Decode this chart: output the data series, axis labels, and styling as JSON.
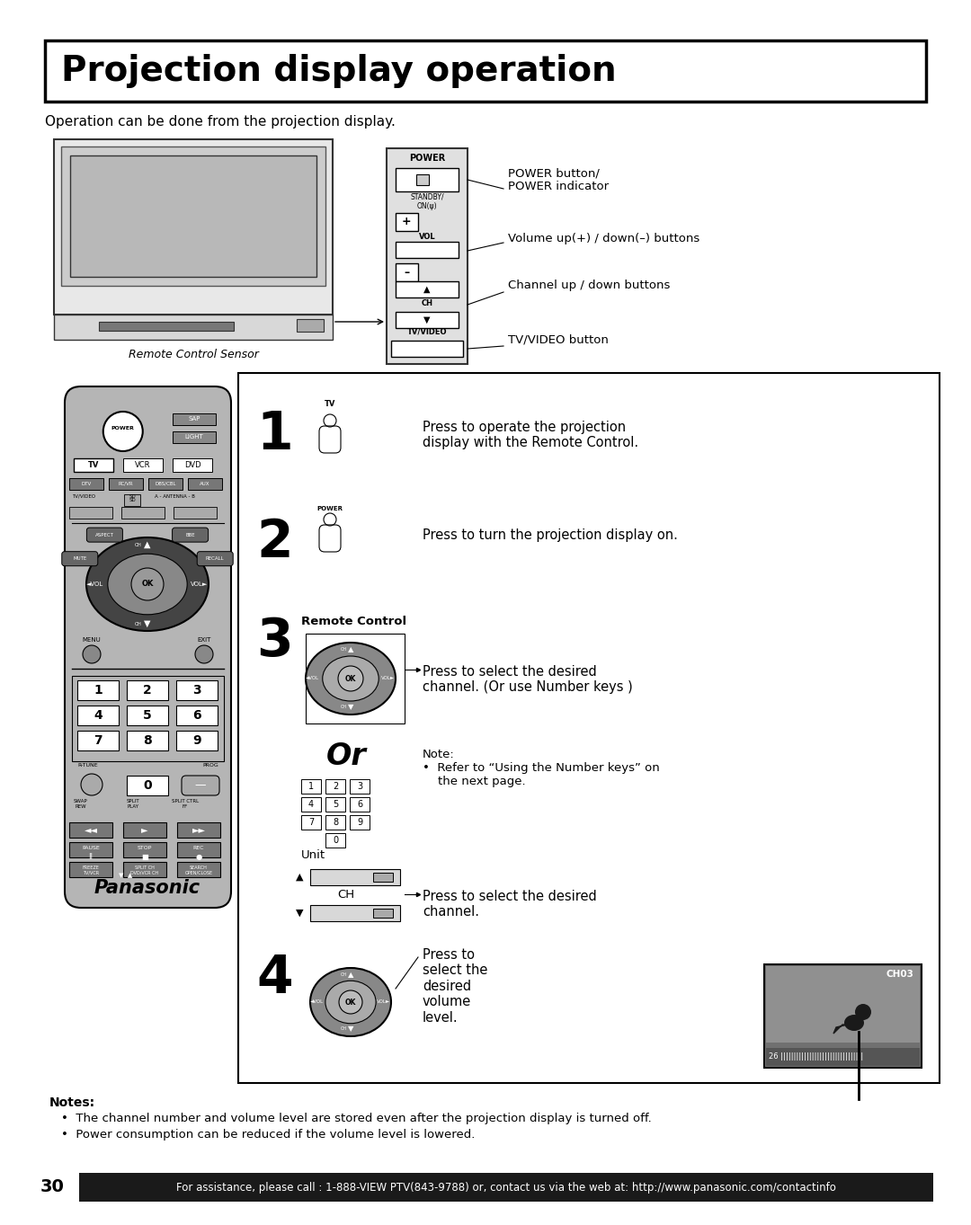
{
  "title": "Projection display operation",
  "subtitle": "Operation can be done from the projection display.",
  "bg_color": "#ffffff",
  "title_fontsize": 28,
  "subtitle_fontsize": 11,
  "page_number": "30",
  "footer_text": "For assistance, please call : 1-888-VIEW PTV(843-9788) or, contact us via the web at: http://www.panasonic.com/contactinfo",
  "footer_bg": "#1a1a1a",
  "footer_fg": "#ffffff",
  "notes_header": "Notes:",
  "notes": [
    "The channel number and volume level are stored even after the projection display is turned off.",
    "Power consumption can be reduced if the volume level is lowered."
  ],
  "right_panel_labels": [
    "POWER button/\nPOWER indicator",
    "Volume up(+) / down(–) buttons",
    "Channel up / down buttons",
    "TV/VIDEO button"
  ],
  "step_labels": [
    "Press to operate the projection\ndisplay with the Remote Control.",
    "Press to turn the projection display on.",
    "Press to select the desired\nchannel. (Or use Number keys )",
    "Press to select the desired\nchannel.",
    "Press to\nselect the\ndesired\nvolume\nlevel."
  ],
  "note_text": "Note:\n•  Refer to “Using the Number keys” on\n    the next page.",
  "remote_control_label": "Remote Control",
  "unit_label": "Unit",
  "ch_label": "CH",
  "or_label": "Or"
}
